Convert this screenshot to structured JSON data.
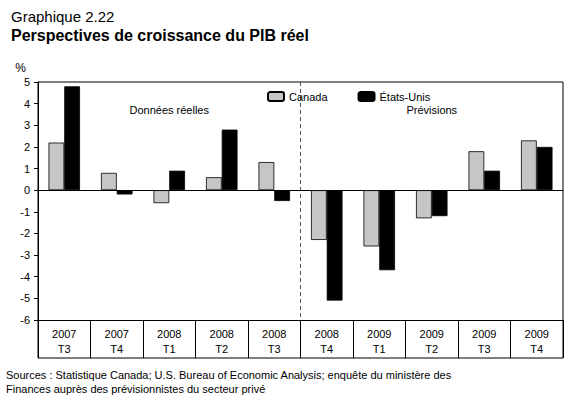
{
  "chart_data": {
    "type": "bar",
    "subtitle": "Graphique 2.22",
    "title": "Perspectives de croissance du PIB réel",
    "ylabel": "%",
    "categories": [
      "2007\nT3",
      "2007\nT4",
      "2008\nT1",
      "2008\nT2",
      "2008\nT3",
      "2008\nT4",
      "2009\nT1",
      "2009\nT2",
      "2009\nT3",
      "2009\nT4"
    ],
    "series": [
      {
        "name": "Canada",
        "color": "#c6c6c6",
        "values": [
          2.2,
          0.8,
          -0.6,
          0.6,
          1.3,
          -2.3,
          -2.6,
          -1.3,
          1.8,
          2.3
        ]
      },
      {
        "name": "États-Unis",
        "color": "#000000",
        "values": [
          4.8,
          -0.2,
          0.9,
          2.8,
          -0.5,
          -5.1,
          -3.7,
          -1.2,
          0.9,
          2.0
        ]
      }
    ],
    "ylim": [
      -6,
      5
    ],
    "yticks": [
      -6,
      -5,
      -4,
      -3,
      -2,
      -1,
      0,
      1,
      2,
      3,
      4,
      5
    ],
    "grid": false,
    "legend": "top",
    "annotations": [
      {
        "text": "Données réelles",
        "categories": [
          "2007\nT3",
          "2008\nT3"
        ]
      },
      {
        "text": "Prévisions",
        "categories": [
          "2008\nT4",
          "2009\nT4"
        ]
      }
    ],
    "source": "Sources : Statistique Canada; U.S. Bureau of Economic Analysis; enquête du ministère des Finances auprès des prévisionnistes du secteur privé"
  }
}
